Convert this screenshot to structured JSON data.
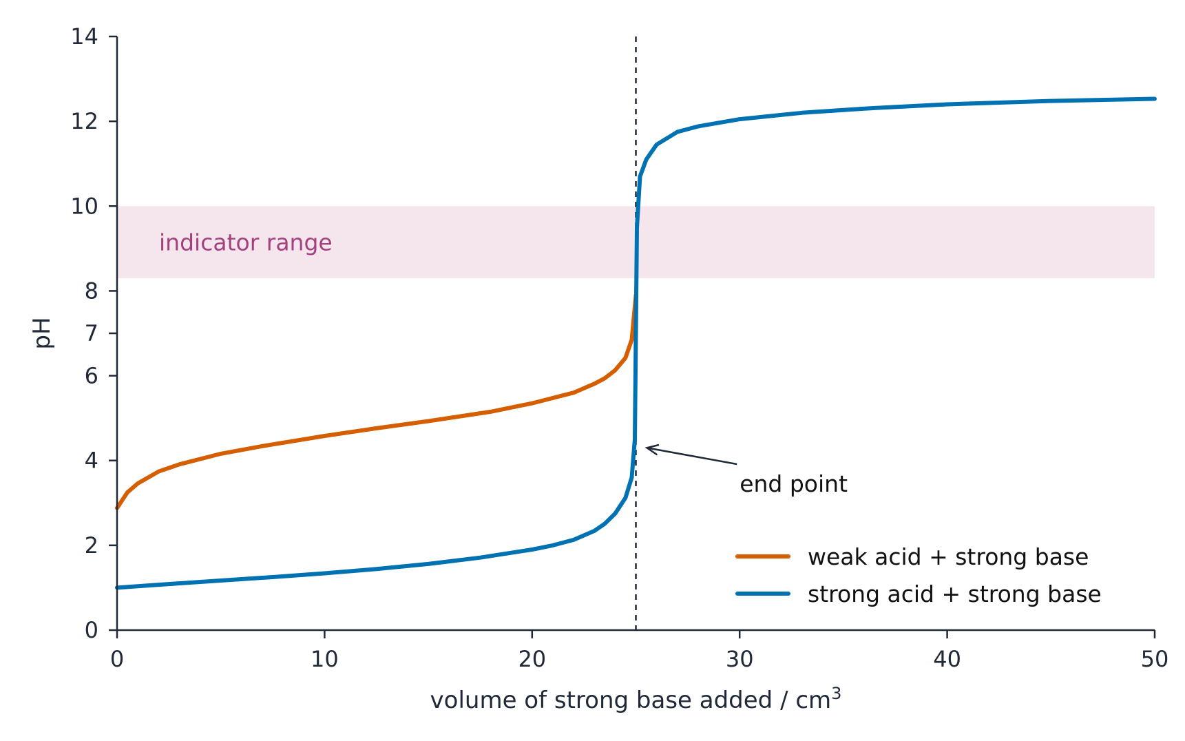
{
  "chart_data": {
    "type": "line",
    "xlabel": "volume of strong base added / cm",
    "xlabel_superscript": "3",
    "ylabel": "pH",
    "xlim": [
      0,
      50
    ],
    "ylim": [
      0,
      14
    ],
    "x_ticks": [
      0,
      10,
      20,
      30,
      40,
      50
    ],
    "x_tick_labels": [
      "0",
      "10",
      "20",
      "30",
      "40",
      "50"
    ],
    "y_ticks": [
      0,
      2,
      4,
      6,
      7,
      8,
      10,
      12,
      14
    ],
    "y_tick_labels": [
      "0",
      "2",
      "4",
      "6",
      "7",
      "8",
      "10",
      "12",
      "14"
    ],
    "grid": false,
    "legend_position": "lower-right",
    "series": [
      {
        "name": "weak acid + strong base",
        "color": "#d55e00",
        "x": [
          0,
          0.5,
          1,
          2,
          3,
          5,
          7,
          10,
          12.5,
          15,
          18,
          20,
          22,
          23,
          23.5,
          24,
          24.5,
          24.8,
          25
        ],
        "y": [
          2.88,
          3.25,
          3.46,
          3.74,
          3.91,
          4.16,
          4.34,
          4.58,
          4.76,
          4.93,
          5.15,
          5.35,
          5.6,
          5.81,
          5.94,
          6.13,
          6.42,
          6.85,
          7.9
        ]
      },
      {
        "name": "strong acid + strong base",
        "color": "#0072b2",
        "x": [
          0,
          2,
          5,
          7.5,
          10,
          12.5,
          15,
          17.5,
          20,
          21,
          22,
          23,
          23.5,
          24,
          24.5,
          24.8,
          24.95,
          25,
          25.05,
          25.2,
          25.5,
          26,
          27,
          28,
          30,
          33,
          36,
          40,
          45,
          50
        ],
        "y": [
          1.0,
          1.07,
          1.17,
          1.25,
          1.34,
          1.44,
          1.56,
          1.71,
          1.9,
          2.0,
          2.13,
          2.34,
          2.51,
          2.75,
          3.12,
          3.6,
          4.5,
          7.0,
          9.5,
          10.7,
          11.1,
          11.45,
          11.75,
          11.88,
          12.05,
          12.2,
          12.3,
          12.4,
          12.48,
          12.53
        ]
      }
    ],
    "indicator_band": {
      "label": "indicator range",
      "y_range": [
        8.3,
        10.0
      ],
      "color": "#f5e6ee",
      "text_color": "#a3407d"
    },
    "end_point": {
      "x": 25,
      "label": "end point",
      "arrow_target": [
        25.4,
        4.3
      ],
      "label_position": [
        30,
        3.2
      ]
    }
  }
}
